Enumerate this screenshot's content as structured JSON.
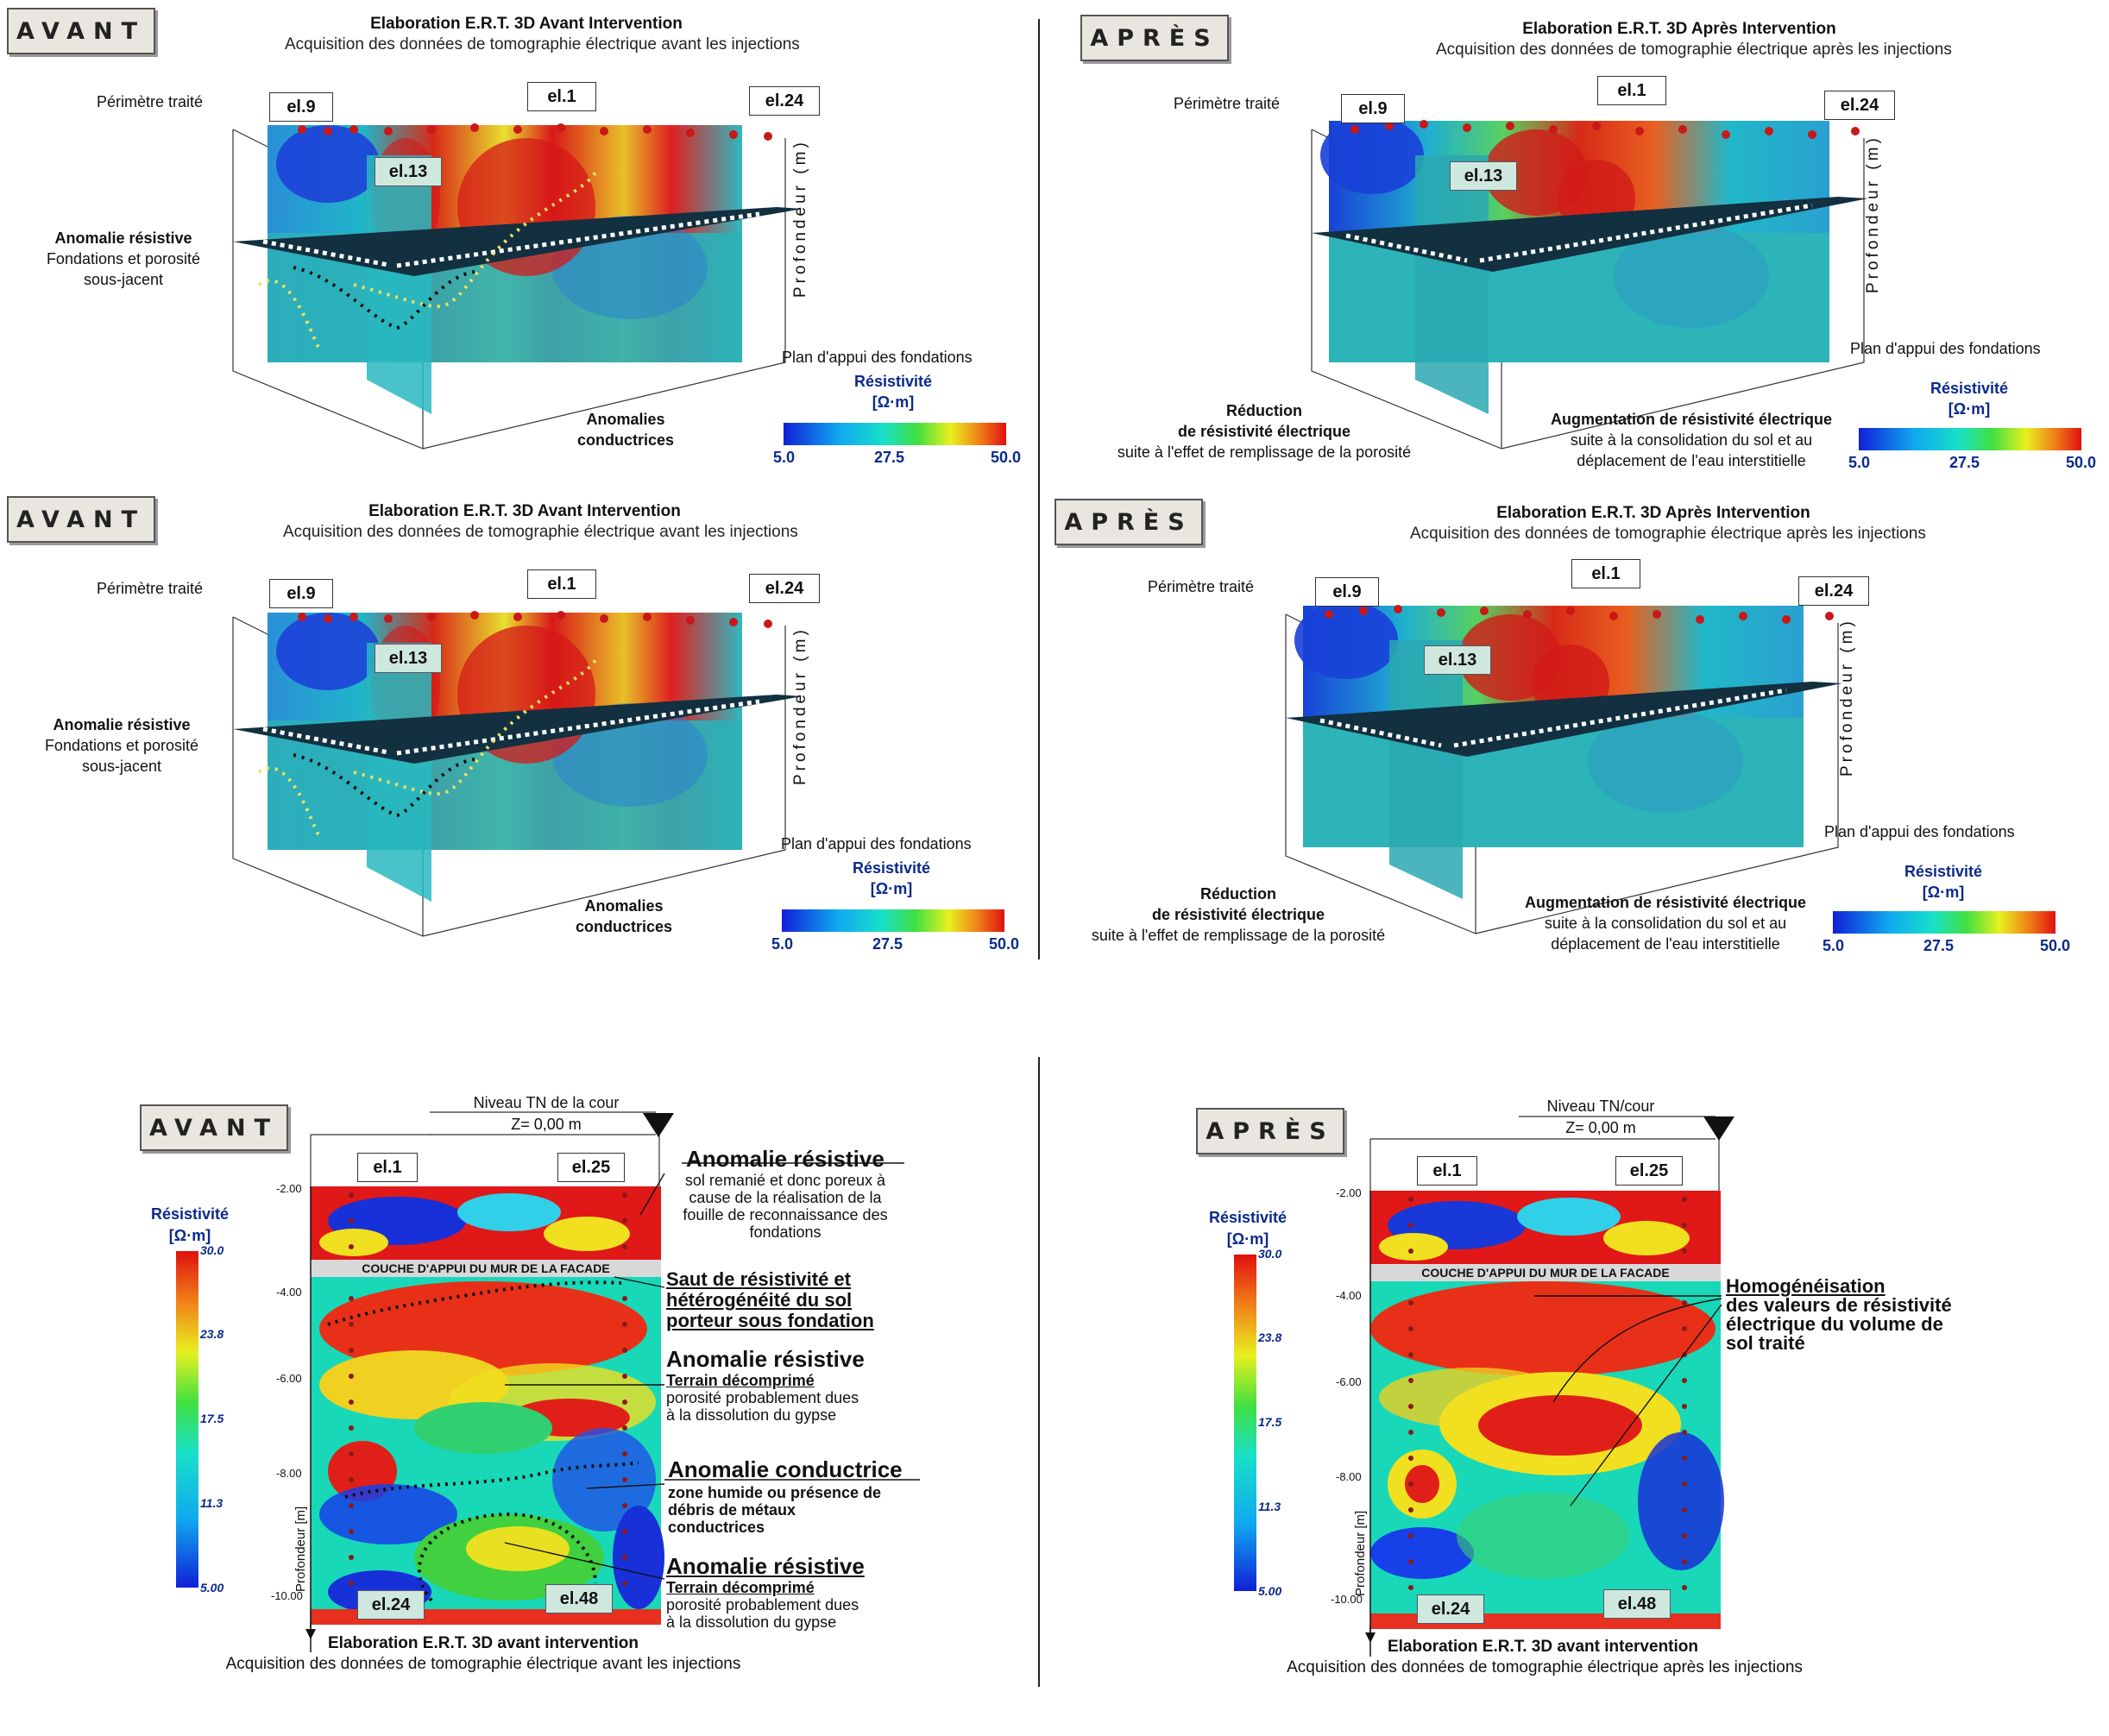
{
  "colors": {
    "low": "#1428d8",
    "mid": "#18d0c0",
    "high": "#e81010",
    "electrode": "#c81818",
    "accent": "#0a2a8c"
  },
  "tags": {
    "avant": "AVANT",
    "apres": "APRÈS"
  },
  "panel_titles": {
    "avant": "Elaboration E.R.T. 3D Avant Intervention",
    "avant_sub": "Acquisition des données de tomographie électrique avant les injections",
    "apres": "Elaboration E.R.T. 3D Après Intervention",
    "apres_sub": "Acquisition des données de tomographie électrique après les injections"
  },
  "labels3d": {
    "perimetre": "Périmètre traité",
    "el9": "el.9",
    "el1": "el.1",
    "el24": "el.24",
    "el13": "el.13",
    "profondeur": "Profondeur (m)",
    "anomalie_resistive": "Anomalie résistive",
    "fondations_porosite": "Fondations et porosité",
    "sous_jacent": "sous-jacent",
    "plan_appui": "Plan d'appui des fondations",
    "anomalies": "Anomalies",
    "conductrices": "conductrices",
    "reduction": "Réduction",
    "de_resistivite": "de résistivité électrique",
    "suite_remplissage": "suite à l'effet de remplissage de la porosité",
    "augmentation": "Augmentation de résistivité électrique",
    "suite_consolidation": "suite à la consolidation du sol et au",
    "deplacement": "déplacement de l'eau interstitielle"
  },
  "colorbar3d": {
    "title1": "Résistivité",
    "title2": "[Ω·m]",
    "min": "5.0",
    "mid": "27.5",
    "max": "50.0"
  },
  "section": {
    "niveau_tn_avant": "Niveau TN de la cour",
    "niveau_tn_apres": "Niveau TN/cour",
    "z0": "Z= 0,00 m",
    "el1": "el.1",
    "el25": "el.25",
    "el24": "el.24",
    "el48": "el.48",
    "couche": "COUCHE D'APPUI DU MUR DE LA FACADE",
    "profondeur": "Profondeur [m]",
    "depths": [
      "-2.00",
      "-4.00",
      "-6.00",
      "-8.00",
      "-10.00"
    ],
    "cb_title1": "Résistivité",
    "cb_title2": "[Ω·m]",
    "cb_ticks": [
      "30.0",
      "23.8",
      "17.5",
      "11.3",
      "5.00"
    ],
    "caption_title": "Elaboration E.R.T. 3D avant intervention",
    "caption_avant": "Acquisition des données de tomographie électrique avant les injections",
    "caption_apres": "Acquisition des données de tomographie électrique après les injections"
  },
  "annotations_avant": {
    "a1_title": "Anomalie résistive",
    "a1_l1": "sol remanié et donc poreux à",
    "a1_l2": "cause de la réalisation de la",
    "a1_l3": "fouille de reconnaissance des",
    "a1_l4": "fondations",
    "a2_l1": "Saut de résistivité et",
    "a2_l2": "hétérogénéité du sol",
    "a2_l3": "porteur sous fondation",
    "a3_title": "Anomalie résistive",
    "a3_sub": "Terrain décomprimé",
    "a3_l1": "porosité probablement dues",
    "a3_l2": "à la dissolution du gypse",
    "a4_title": "Anomalie conductrice",
    "a4_l1": "zone humide ou présence de",
    "a4_l2": "débris de métaux",
    "a4_l3": "conductrices",
    "a5_title": "Anomalie résistive",
    "a5_sub": "Terrain décomprimé",
    "a5_l1": "porosité probablement dues",
    "a5_l2": "à la dissolution du gypse"
  },
  "annotations_apres": {
    "h_title": "Homogénéisation",
    "h_l1": "des valeurs de résistivité",
    "h_l2": "électrique du volume de",
    "h_l3": "sol traité"
  }
}
